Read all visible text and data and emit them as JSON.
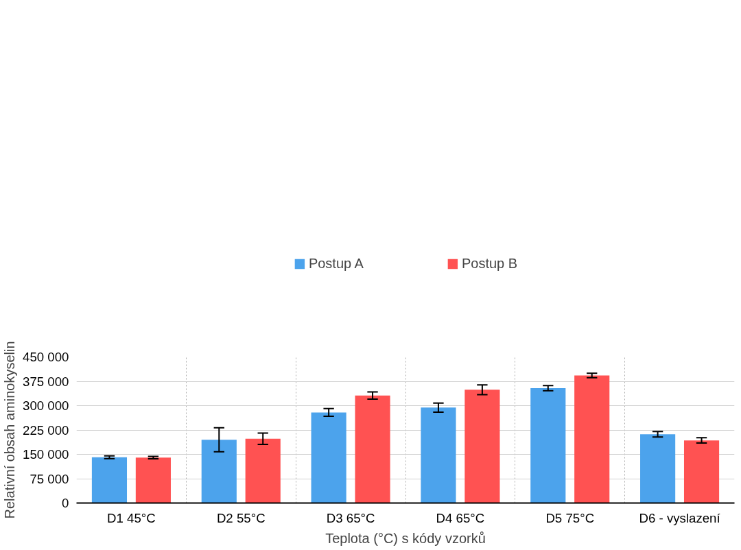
{
  "chart_data": {
    "type": "bar",
    "xlabel": "Teplota (°C) s kódy vzorků",
    "ylabel": "Relativní obsah aminokyselin",
    "categories": [
      "D1 45°C",
      "D2 55°C",
      "D3 65°C",
      "D4 65°C",
      "D5 75°C",
      "D6 - vyslazení"
    ],
    "series": [
      {
        "name": "Postup A",
        "color": "#4ca3ec",
        "values": [
          141000,
          195000,
          279000,
          294000,
          354000,
          212000
        ],
        "errors": [
          4000,
          37000,
          12000,
          14000,
          8000,
          8500
        ]
      },
      {
        "name": "Postup B",
        "color": "#ff5252",
        "values": [
          140000,
          198000,
          331000,
          349000,
          393000,
          193000
        ],
        "errors": [
          3500,
          17500,
          11000,
          15000,
          7000,
          8000
        ]
      }
    ],
    "ylim": [
      0,
      450000
    ],
    "yticks": [
      {
        "value": 0,
        "label": "0"
      },
      {
        "value": 75000,
        "label": "75 000"
      },
      {
        "value": 150000,
        "label": "150 000"
      },
      {
        "value": 225000,
        "label": "225 000"
      },
      {
        "value": 300000,
        "label": "300 000"
      },
      {
        "value": 375000,
        "label": "375 000"
      },
      {
        "value": 450000,
        "label": "450 000"
      }
    ],
    "grid": true,
    "legend": "top"
  }
}
